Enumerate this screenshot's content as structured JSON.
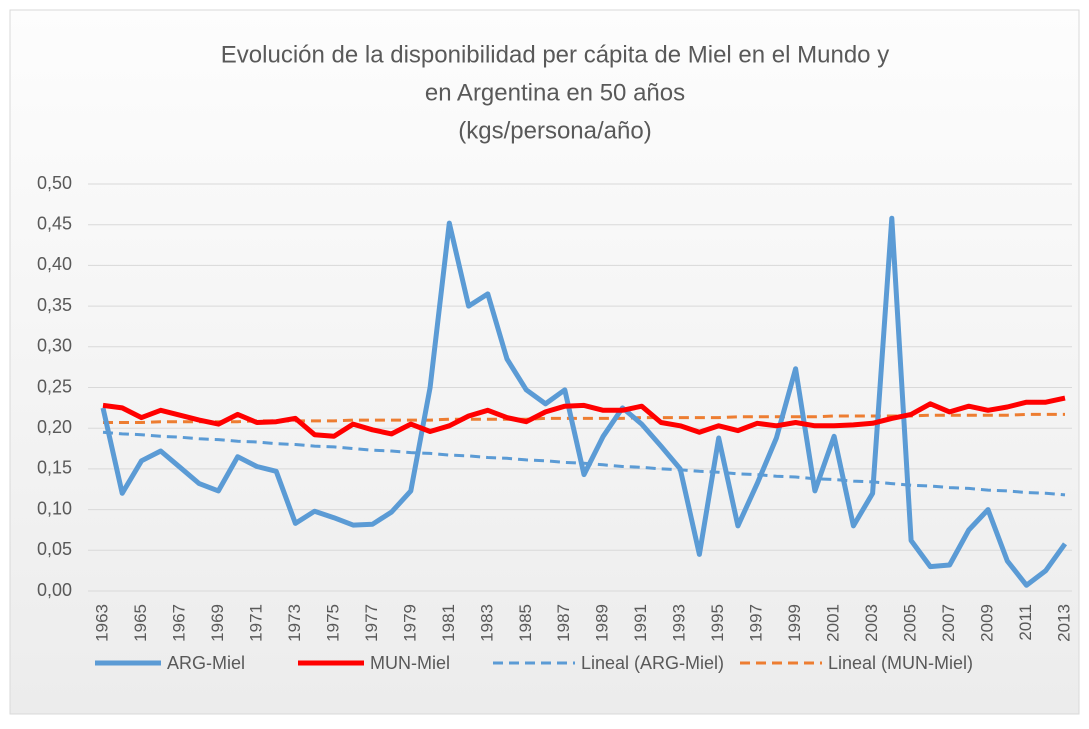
{
  "chart_data": {
    "type": "line",
    "title": [
      "Evolución de la disponibilidad per cápita de Miel en el Mundo y",
      "en Argentina en 50 años",
      "(kgs/persona/año)"
    ],
    "categories": [
      "1963",
      null,
      "1965",
      null,
      "1967",
      null,
      "1969",
      null,
      "1971",
      null,
      "1973",
      null,
      "1975",
      null,
      "1977",
      null,
      "1979",
      null,
      "1981",
      null,
      "1983",
      null,
      "1985",
      null,
      "1987",
      null,
      "1989",
      null,
      "1991",
      null,
      "1993",
      null,
      "1995",
      null,
      "1997",
      null,
      "1999",
      null,
      "2001",
      null,
      "2003",
      null,
      "2005",
      null,
      "2007",
      null,
      "2009",
      null,
      "2011",
      null,
      "2013"
    ],
    "series": [
      {
        "name": "ARG-Miel",
        "color": "#5b9bd5",
        "dashed": false,
        "values": [
          0.225,
          0.12,
          0.16,
          0.172,
          0.152,
          0.132,
          0.123,
          0.165,
          0.153,
          0.147,
          0.083,
          0.098,
          0.09,
          0.081,
          0.082,
          0.097,
          0.123,
          0.25,
          0.452,
          0.35,
          0.365,
          0.285,
          0.247,
          0.23,
          0.247,
          0.143,
          0.19,
          0.225,
          0.205,
          0.178,
          0.15,
          0.045,
          0.188,
          0.08,
          0.132,
          0.188,
          0.273,
          0.123,
          0.19,
          0.08,
          0.12,
          0.458,
          0.062,
          0.03,
          0.032,
          0.075,
          0.1,
          0.037,
          0.007,
          0.025,
          0.058
        ]
      },
      {
        "name": "MUN-Miel",
        "color": "#ff0000",
        "dashed": false,
        "values": [
          0.228,
          0.225,
          0.213,
          0.222,
          0.216,
          0.21,
          0.205,
          0.217,
          0.207,
          0.208,
          0.212,
          0.192,
          0.19,
          0.205,
          0.198,
          0.193,
          0.205,
          0.196,
          0.203,
          0.215,
          0.222,
          0.213,
          0.208,
          0.22,
          0.227,
          0.228,
          0.222,
          0.222,
          0.227,
          0.207,
          0.203,
          0.195,
          0.203,
          0.197,
          0.206,
          0.203,
          0.207,
          0.203,
          0.203,
          0.204,
          0.206,
          0.212,
          0.217,
          0.23,
          0.22,
          0.227,
          0.222,
          0.226,
          0.232,
          0.232,
          0.237
        ]
      },
      {
        "name": "Lineal (ARG-Miel)",
        "color": "#5b9bd5",
        "dashed": true,
        "values": [
          0.195,
          0.193,
          0.192,
          0.19,
          0.189,
          0.187,
          0.186,
          0.184,
          0.183,
          0.181,
          0.18,
          0.178,
          0.177,
          0.175,
          0.173,
          0.172,
          0.17,
          0.169,
          0.167,
          0.166,
          0.164,
          0.163,
          0.161,
          0.16,
          0.158,
          0.157,
          0.155,
          0.153,
          0.152,
          0.15,
          0.149,
          0.147,
          0.146,
          0.144,
          0.143,
          0.141,
          0.14,
          0.138,
          0.137,
          0.135,
          0.134,
          0.132,
          0.13,
          0.129,
          0.127,
          0.126,
          0.124,
          0.123,
          0.121,
          0.12,
          0.118
        ]
      },
      {
        "name": "Lineal (MUN-Miel)",
        "color": "#ed7d31",
        "dashed": true,
        "values": [
          0.207,
          0.207,
          0.207,
          0.208,
          0.208,
          0.208,
          0.208,
          0.208,
          0.209,
          0.209,
          0.209,
          0.209,
          0.209,
          0.21,
          0.21,
          0.21,
          0.21,
          0.21,
          0.211,
          0.211,
          0.211,
          0.211,
          0.211,
          0.212,
          0.212,
          0.212,
          0.212,
          0.212,
          0.213,
          0.213,
          0.213,
          0.213,
          0.213,
          0.214,
          0.214,
          0.214,
          0.214,
          0.214,
          0.215,
          0.215,
          0.215,
          0.215,
          0.215,
          0.216,
          0.216,
          0.216,
          0.216,
          0.216,
          0.217,
          0.217,
          0.217
        ]
      }
    ],
    "ylim": [
      0,
      0.5
    ],
    "yticks": [
      {
        "value": 0,
        "label": "0,00"
      },
      {
        "value": 0.05,
        "label": "0,05"
      },
      {
        "value": 0.1,
        "label": "0,10"
      },
      {
        "value": 0.15,
        "label": "0,15"
      },
      {
        "value": 0.2,
        "label": "0,20"
      },
      {
        "value": 0.25,
        "label": "0,25"
      },
      {
        "value": 0.3,
        "label": "0,30"
      },
      {
        "value": 0.35,
        "label": "0,35"
      },
      {
        "value": 0.4,
        "label": "0,40"
      },
      {
        "value": 0.45,
        "label": "0,45"
      },
      {
        "value": 0.5,
        "label": "0,50"
      }
    ],
    "grid": true,
    "legend": "bottom"
  }
}
